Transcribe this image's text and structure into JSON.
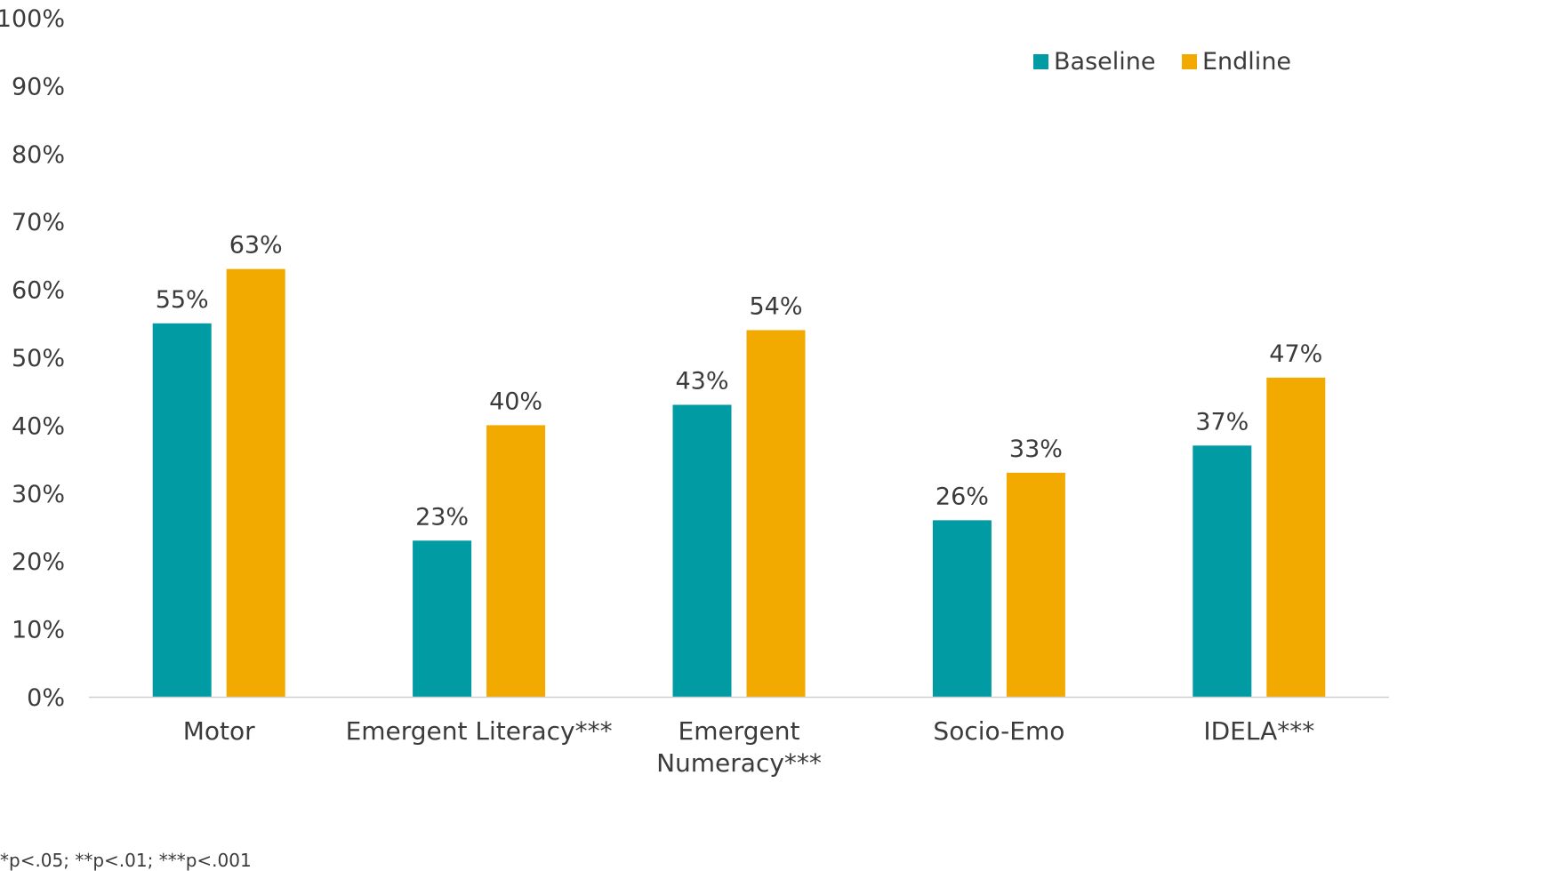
{
  "chart_data": {
    "type": "bar",
    "categories": [
      "Motor",
      "Emergent Literacy***",
      "Emergent Numeracy***",
      "Socio-Emo",
      "IDELA***"
    ],
    "category_lines": [
      [
        "Motor"
      ],
      [
        "Emergent Literacy***"
      ],
      [
        "Emergent",
        "Numeracy***"
      ],
      [
        "Socio-Emo"
      ],
      [
        "IDELA***"
      ]
    ],
    "series": [
      {
        "name": "Baseline",
        "color": "#009ba3",
        "values": [
          55,
          23,
          43,
          26,
          37
        ],
        "labels": [
          "55%",
          "23%",
          "43%",
          "26%",
          "37%"
        ]
      },
      {
        "name": "Endline",
        "color": "#f2a900",
        "values": [
          63,
          40,
          54,
          33,
          47
        ],
        "labels": [
          "63%",
          "40%",
          "54%",
          "33%",
          "47%"
        ]
      }
    ],
    "yticks": [
      "0%",
      "10%",
      "20%",
      "30%",
      "40%",
      "50%",
      "60%",
      "70%",
      "80%",
      "90%",
      "100%"
    ],
    "ylim": [
      0,
      100
    ],
    "title": "",
    "xlabel": "",
    "ylabel": "",
    "grid": false,
    "legend_position": "top-right"
  },
  "footnote": "*p<.05; **p<.01; ***p<.001"
}
